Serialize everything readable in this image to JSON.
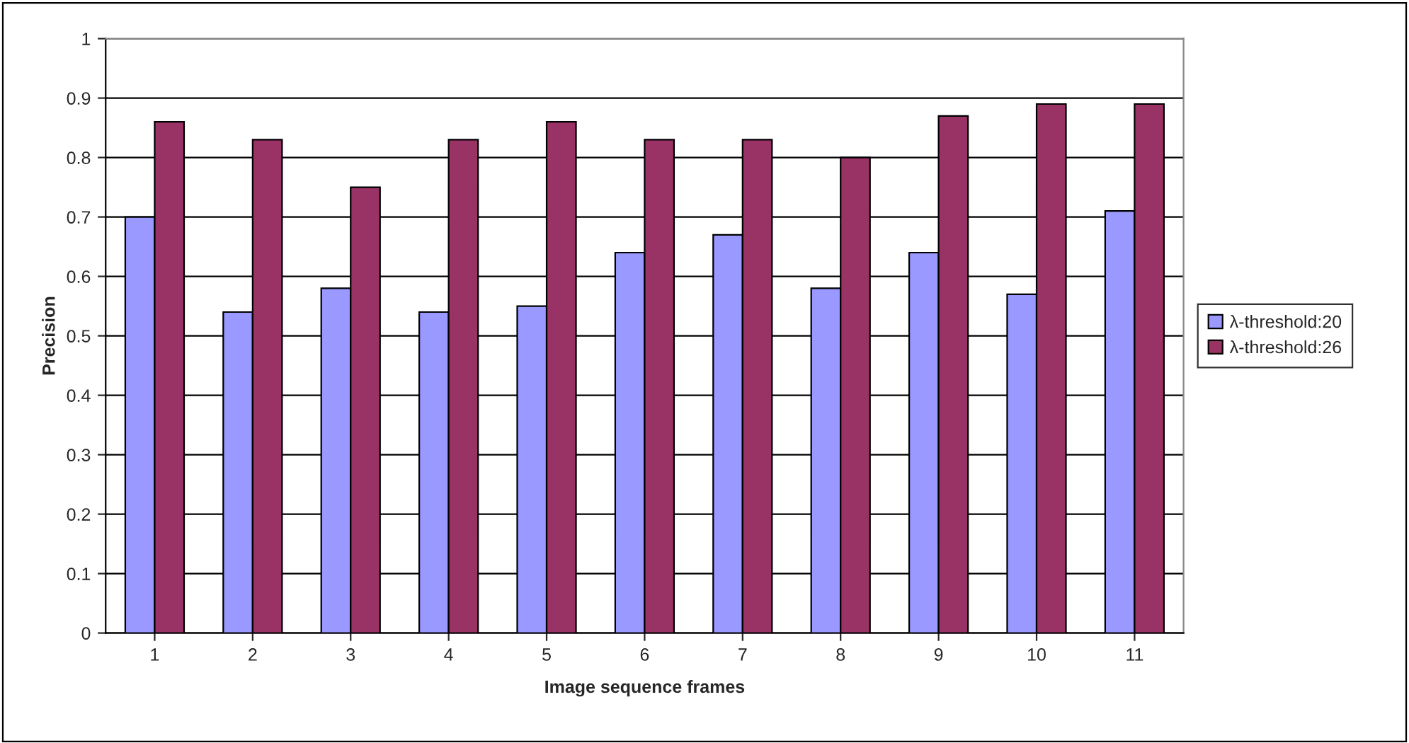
{
  "chart_data": {
    "type": "bar",
    "xlabel": "Image sequence frames",
    "ylabel": "Precision",
    "categories": [
      "1",
      "2",
      "3",
      "4",
      "5",
      "6",
      "7",
      "8",
      "9",
      "10",
      "11"
    ],
    "series": [
      {
        "name": "λ-threshold:20",
        "color": "#9999ff",
        "values": [
          0.7,
          0.54,
          0.58,
          0.54,
          0.55,
          0.64,
          0.67,
          0.58,
          0.64,
          0.57,
          0.71
        ]
      },
      {
        "name": "λ-threshold:26",
        "color": "#993366",
        "values": [
          0.86,
          0.83,
          0.75,
          0.83,
          0.86,
          0.83,
          0.83,
          0.8,
          0.87,
          0.89,
          0.89
        ]
      }
    ],
    "ylim": [
      0,
      1
    ],
    "yticks": [
      0,
      0.1,
      0.2,
      0.3,
      0.4,
      0.5,
      0.6,
      0.7,
      0.8,
      0.9,
      1
    ],
    "grid": "y",
    "legend": "right"
  }
}
